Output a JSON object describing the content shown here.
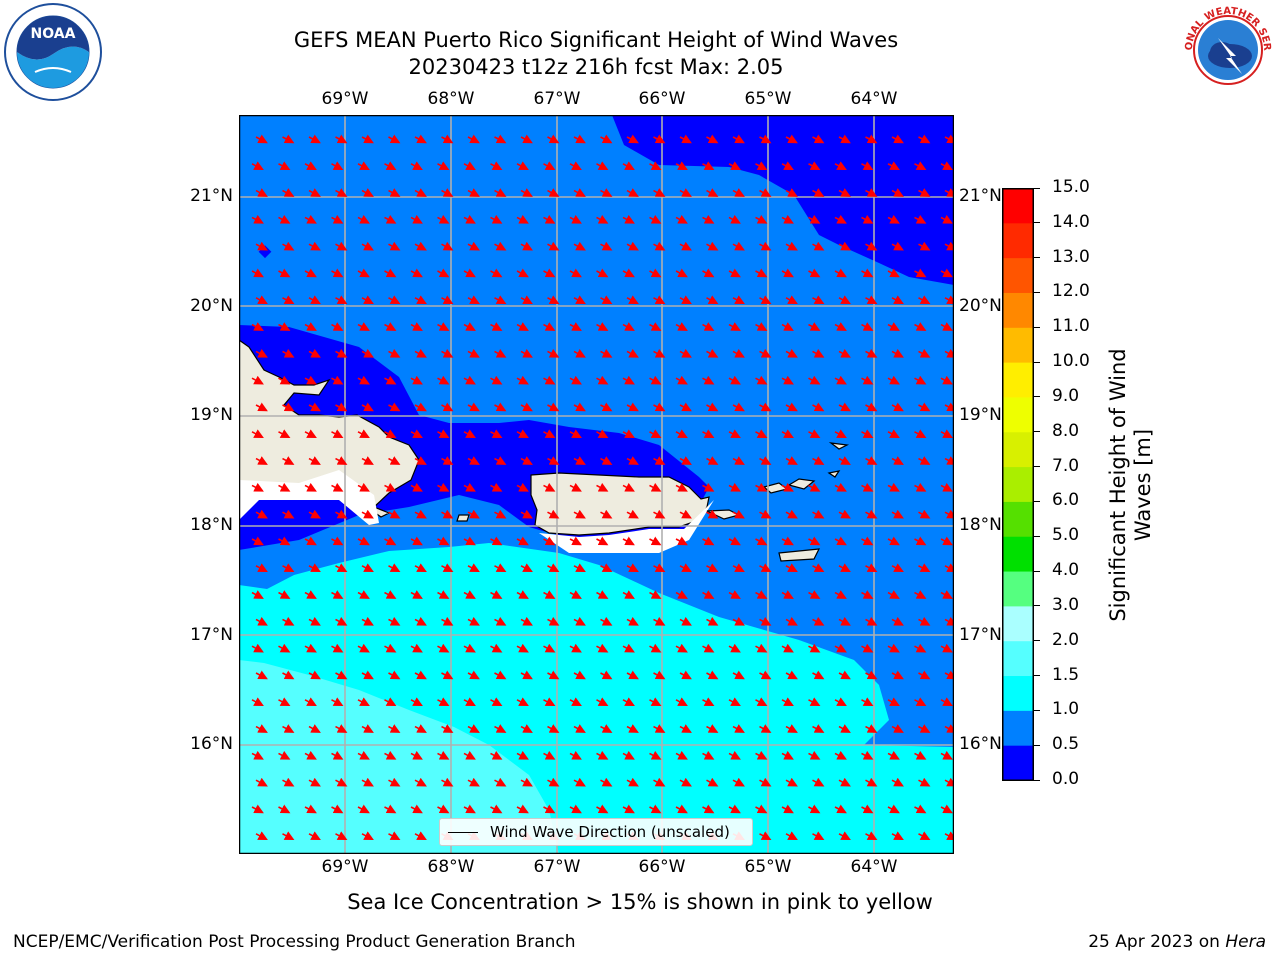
{
  "header": {
    "title_line1": "GEFS MEAN Puerto Rico Significant Height of Wind Waves",
    "title_line2": "20230423 t12z 216h fcst   Max: 2.05"
  },
  "logos": {
    "noaa_center_text": "NOAA",
    "noaa_ring_text": "NATIONAL OCEANIC AND ATMOSPHERIC ADMINISTRATION · U.S. DEPARTMENT OF COMMERCE",
    "nws_ring_text": "NATIONAL WEATHER SERVICE"
  },
  "map": {
    "lon_ticks": [
      "69°W",
      "68°W",
      "67°W",
      "66°W",
      "65°W",
      "64°W"
    ],
    "lat_ticks": [
      "21°N",
      "20°N",
      "19°N",
      "18°N",
      "17°N",
      "16°N"
    ],
    "legend_label": "Wind Wave Direction (unscaled)",
    "arrow_direction": "toward SSE (approx. 155°)",
    "colors": {
      "land": "#eeecdf",
      "arrow": "#ff0000",
      "grid": "#b0b0b0",
      "unmasked_near_coast": "#ffffff"
    }
  },
  "colorbar": {
    "title": "Significant Height of Wind Waves [m]",
    "ticks": [
      "0.0",
      "0.5",
      "1.0",
      "1.5",
      "2.0",
      "3.0",
      "4.0",
      "5.0",
      "6.0",
      "7.0",
      "8.0",
      "9.0",
      "10.0",
      "11.0",
      "12.0",
      "13.0",
      "14.0",
      "15.0"
    ],
    "bins": [
      {
        "range": "0.0-0.5",
        "color": "#0000ff"
      },
      {
        "range": "0.5-1.0",
        "color": "#0080ff"
      },
      {
        "range": "1.0-1.5",
        "color": "#00ffff"
      },
      {
        "range": "1.5-2.0",
        "color": "#55ffff"
      },
      {
        "range": "2.0-3.0",
        "color": "#aaffff"
      },
      {
        "range": "3.0-4.0",
        "color": "#55ff80"
      },
      {
        "range": "4.0-5.0",
        "color": "#00e000"
      },
      {
        "range": "5.0-6.0",
        "color": "#55e000"
      },
      {
        "range": "6.0-7.0",
        "color": "#aaee00"
      },
      {
        "range": "7.0-8.0",
        "color": "#d8f000"
      },
      {
        "range": "8.0-9.0",
        "color": "#eeff00"
      },
      {
        "range": "9.0-10.0",
        "color": "#ffee00"
      },
      {
        "range": "10.0-11.0",
        "color": "#ffbb00"
      },
      {
        "range": "11.0-12.0",
        "color": "#ff8800"
      },
      {
        "range": "12.0-13.0",
        "color": "#ff5500"
      },
      {
        "range": "13.0-14.0",
        "color": "#ff2a00"
      },
      {
        "range": "14.0-15.0",
        "color": "#ff0000"
      }
    ]
  },
  "caption": "Sea Ice Concentration > 15% is shown in pink to yellow",
  "footer": {
    "left": "NCEP/EMC/Verification Post Processing Product Generation Branch",
    "right_prefix": "25 Apr 2023 on ",
    "right_host": "Hera"
  }
}
